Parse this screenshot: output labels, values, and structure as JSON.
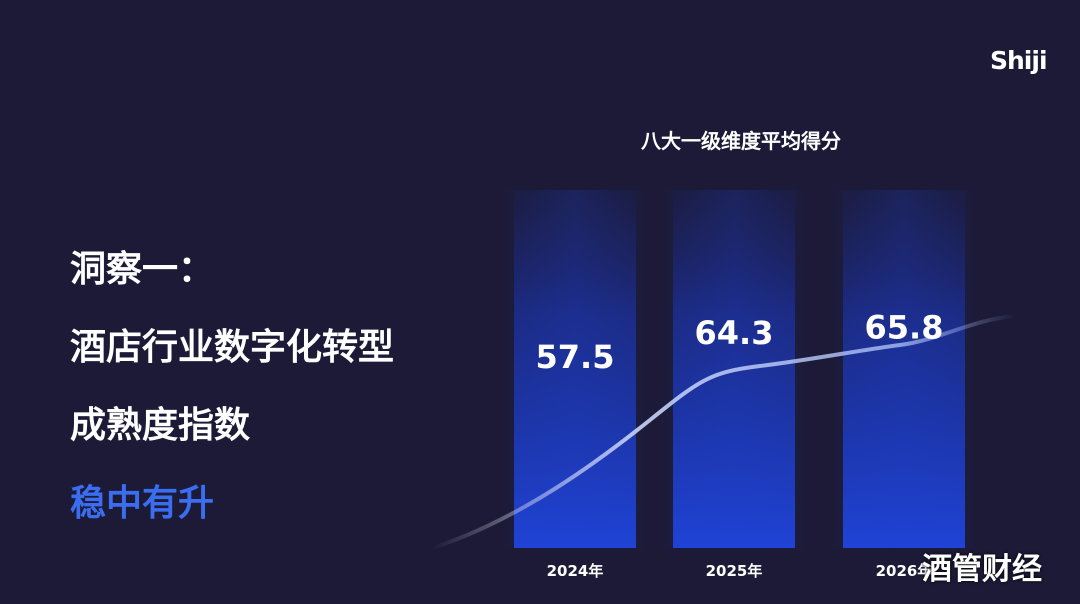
{
  "brand": {
    "logo_text": "Shiji"
  },
  "headline": {
    "line1": "洞察一：",
    "line2": "酒店行业数字化转型",
    "line3": "成熟度指数",
    "line4": "稳中有升"
  },
  "watermark": "酒管财经",
  "colors": {
    "background": "#1c1a37",
    "bar": "#1f43d6",
    "accent_text": "#3a6df0",
    "trend_line": "#a9bdf5"
  },
  "chart_data": {
    "type": "bar",
    "title": "八大一级维度平均得分",
    "categories": [
      "2024年",
      "2025年",
      "2026年"
    ],
    "values": [
      57.5,
      64.3,
      65.8
    ],
    "value_labels": [
      "57.5",
      "64.3",
      "65.8"
    ],
    "ylim": [
      0,
      100
    ],
    "grid": false,
    "trend_line": true,
    "xlabel": "",
    "ylabel": ""
  }
}
